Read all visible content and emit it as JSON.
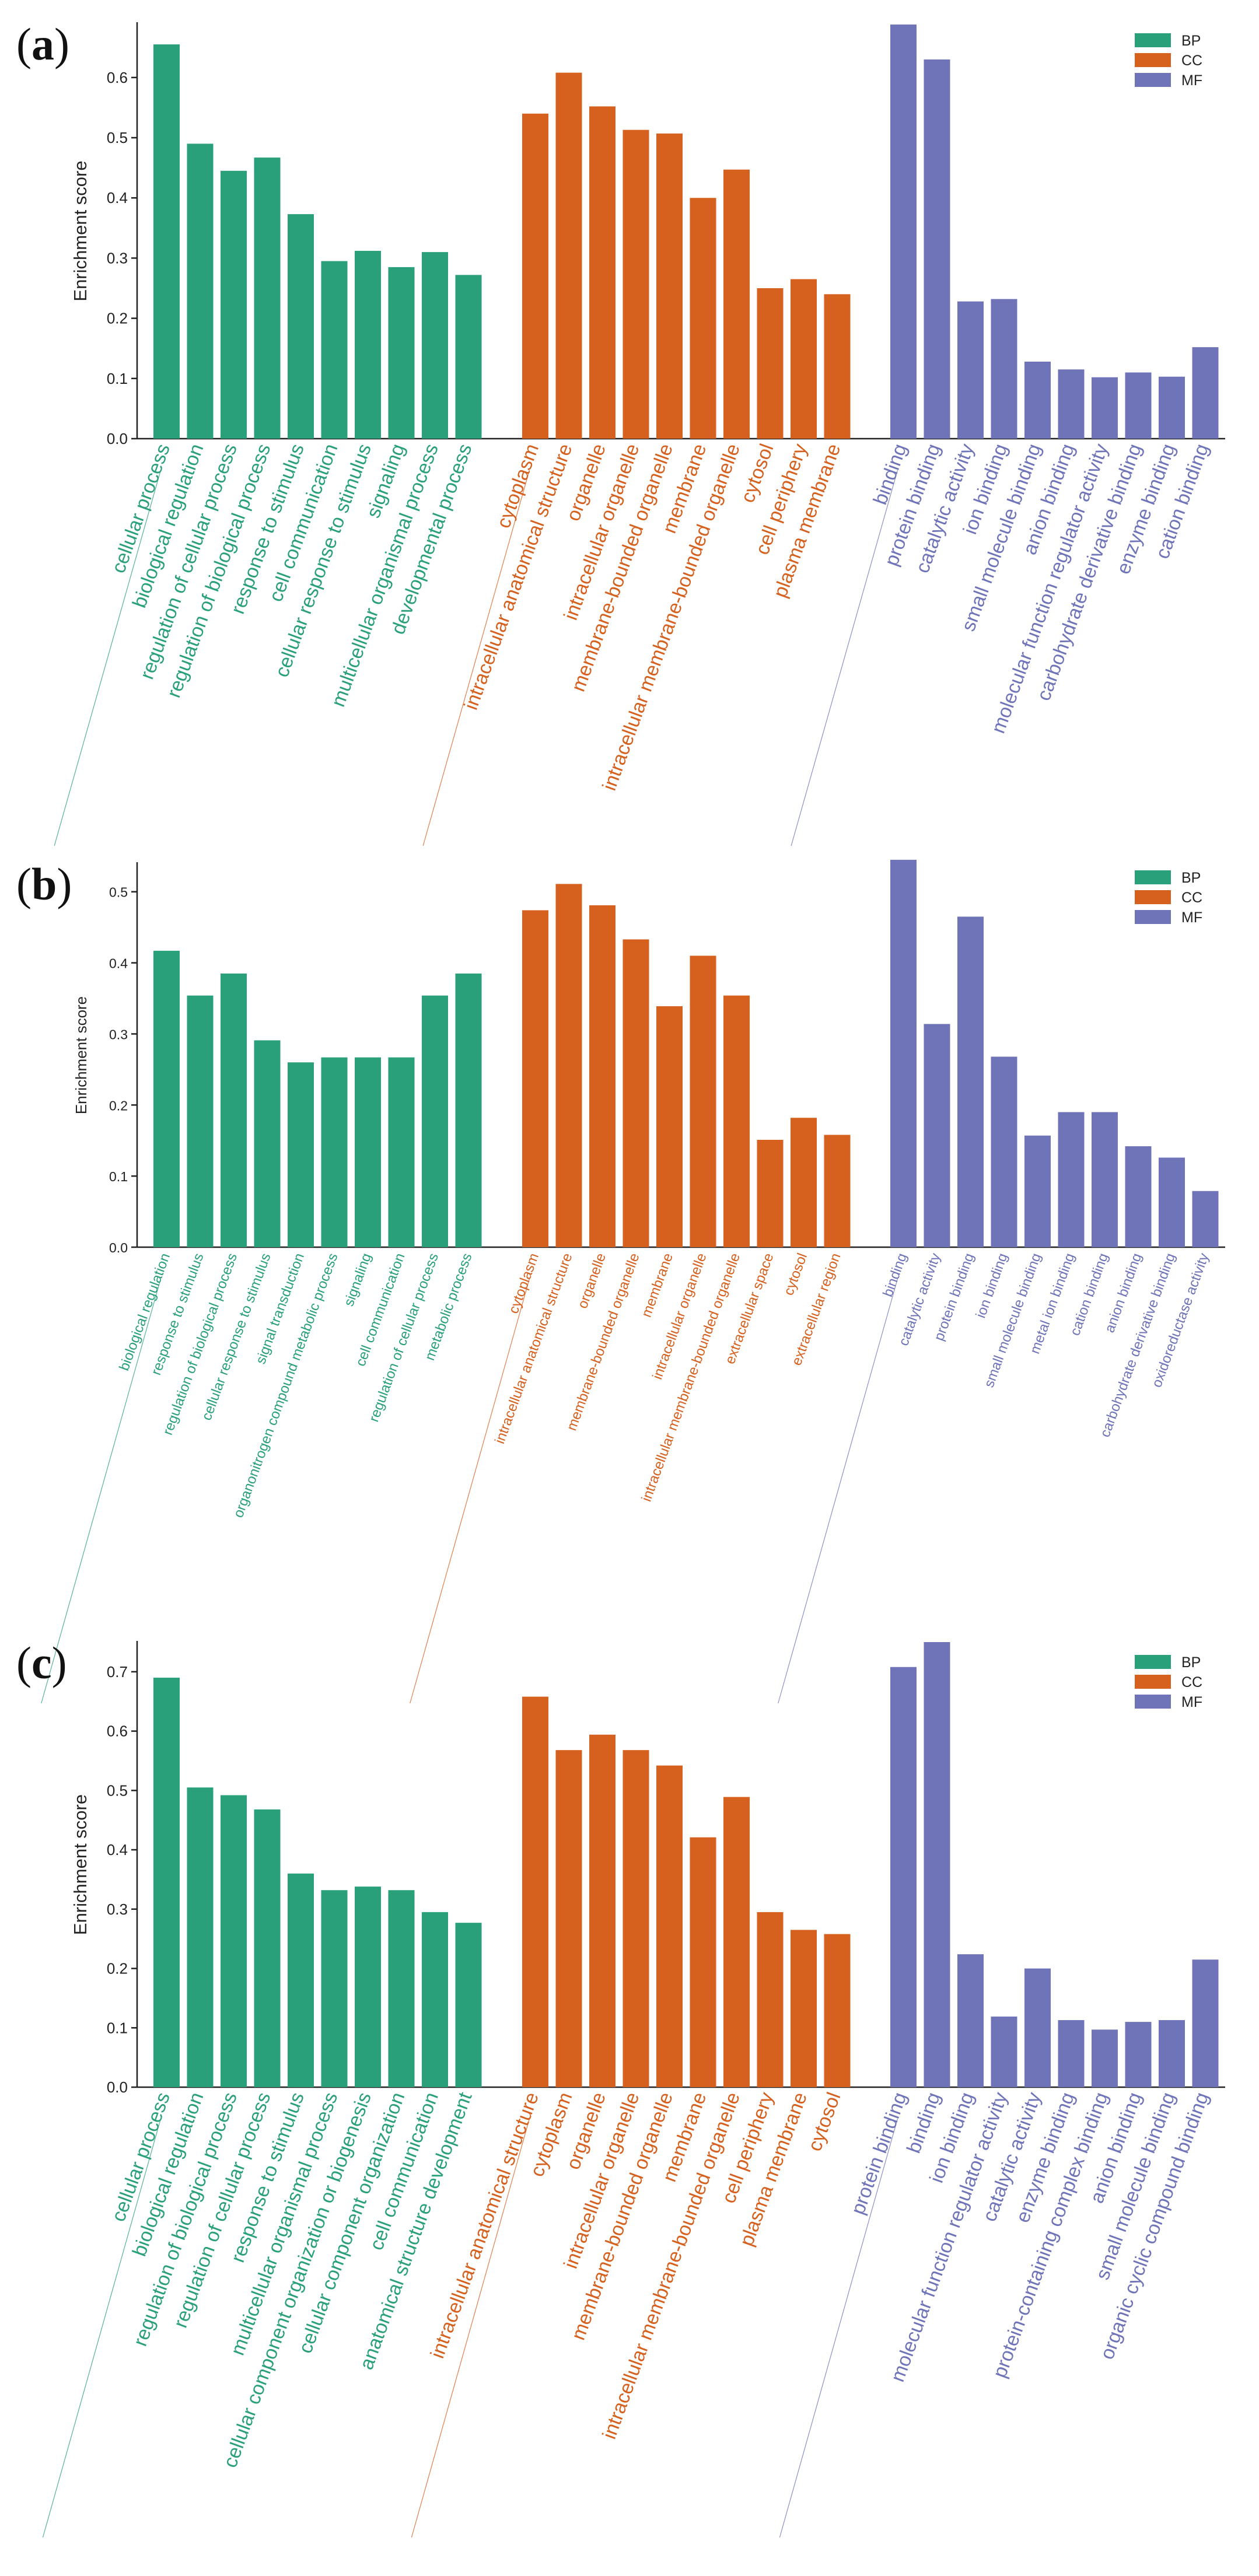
{
  "colors": {
    "BP": "#2aa07a",
    "CC": "#d6601e",
    "MF": "#6f74b8"
  },
  "legend": [
    "BP",
    "CC",
    "MF"
  ],
  "chart_data": [
    {
      "type": "bar",
      "panel": "a",
      "ylabel": "Enrichment score",
      "ylim": [
        0,
        0.69
      ],
      "yticks": [
        0.0,
        0.1,
        0.2,
        0.3,
        0.4,
        0.5,
        0.6
      ],
      "series": [
        {
          "name": "BP",
          "categories": [
            "cellular process",
            "biological regulation",
            "regulation of cellular process",
            "regulation of biological process",
            "response to stimulus",
            "cell communication",
            "cellular response to stimulus",
            "signaling",
            "multicellular organismal process",
            "developmental process"
          ],
          "values": [
            0.655,
            0.49,
            0.445,
            0.467,
            0.373,
            0.295,
            0.312,
            0.285,
            0.31,
            0.272
          ]
        },
        {
          "name": "CC",
          "categories": [
            "cytoplasm",
            "intracellular anatomical structure",
            "organelle",
            "intracellular organelle",
            "membrane-bounded organelle",
            "membrane",
            "intracellular membrane-bounded organelle",
            "cytosol",
            "cell periphery",
            "plasma membrane"
          ],
          "values": [
            0.54,
            0.608,
            0.552,
            0.513,
            0.507,
            0.4,
            0.447,
            0.25,
            0.265,
            0.24
          ]
        },
        {
          "name": "MF",
          "categories": [
            "binding",
            "protein binding",
            "catalytic activity",
            "ion binding",
            "small molecule binding",
            "anion binding",
            "molecular function regulator activity",
            "carbohydrate derivative binding",
            "enzyme binding",
            "cation binding"
          ],
          "values": [
            0.688,
            0.63,
            0.228,
            0.232,
            0.128,
            0.115,
            0.102,
            0.11,
            0.103,
            0.152
          ]
        }
      ]
    },
    {
      "type": "bar",
      "panel": "b",
      "ylabel": "Enrichment score",
      "ylim": [
        0,
        0.54
      ],
      "yticks": [
        0.0,
        0.1,
        0.2,
        0.3,
        0.4,
        0.5
      ],
      "series": [
        {
          "name": "BP",
          "categories": [
            "biological regulation",
            "response to stimulus",
            "regulation of biological process",
            "cellular response to stimulus",
            "signal transduction",
            "organonitrogen compound metabolic process",
            "signaling",
            "cell communication",
            "regulation of cellular process",
            "metabolic process"
          ],
          "values": [
            0.417,
            0.354,
            0.385,
            0.291,
            0.26,
            0.267,
            0.267,
            0.267,
            0.354,
            0.385
          ]
        },
        {
          "name": "CC",
          "categories": [
            "cytoplasm",
            "intracellular anatomical structure",
            "organelle",
            "membrane-bounded organelle",
            "membrane",
            "intracellular organelle",
            "intracellular membrane-bounded organelle",
            "extracellular space",
            "cytosol",
            "extracellular region"
          ],
          "values": [
            0.474,
            0.511,
            0.481,
            0.433,
            0.339,
            0.41,
            0.354,
            0.151,
            0.182,
            0.158
          ]
        },
        {
          "name": "MF",
          "categories": [
            "binding",
            "catalytic activity",
            "protein binding",
            "ion binding",
            "small molecule binding",
            "metal ion binding",
            "cation binding",
            "anion binding",
            "carbohydrate derivative binding",
            "oxidoreductase activity"
          ],
          "values": [
            0.545,
            0.314,
            0.465,
            0.268,
            0.157,
            0.19,
            0.19,
            0.142,
            0.126,
            0.079
          ]
        }
      ]
    },
    {
      "type": "bar",
      "panel": "c",
      "ylabel": "Enrichment score",
      "ylim": [
        0,
        0.75
      ],
      "yticks": [
        0.0,
        0.1,
        0.2,
        0.3,
        0.4,
        0.5,
        0.6,
        0.7
      ],
      "series": [
        {
          "name": "BP",
          "categories": [
            "cellular process",
            "biological regulation",
            "regulation of biological process",
            "regulation of cellular process",
            "response to stimulus",
            "multicellular organismal process",
            "cellular component organization or biogenesis",
            "cellular component organization",
            "cell communication",
            "anatomical structure development"
          ],
          "values": [
            0.69,
            0.505,
            0.492,
            0.468,
            0.36,
            0.332,
            0.338,
            0.332,
            0.295,
            0.277
          ]
        },
        {
          "name": "CC",
          "categories": [
            "intracellular anatomical structure",
            "cytoplasm",
            "organelle",
            "intracellular organelle",
            "membrane-bounded organelle",
            "membrane",
            "intracellular membrane-bounded organelle",
            "cell periphery",
            "plasma membrane",
            "cytosol"
          ],
          "values": [
            0.658,
            0.568,
            0.594,
            0.568,
            0.542,
            0.421,
            0.489,
            0.295,
            0.265,
            0.258
          ]
        },
        {
          "name": "MF",
          "categories": [
            "protein binding",
            "binding",
            "ion binding",
            "molecular function regulator activity",
            "catalytic activity",
            "enzyme binding",
            "protein-containing complex binding",
            "anion binding",
            "small molecule binding",
            "organic cyclic compound binding"
          ],
          "values": [
            0.708,
            0.75,
            0.224,
            0.119,
            0.2,
            0.113,
            0.097,
            0.11,
            0.113,
            0.215
          ]
        }
      ]
    }
  ]
}
